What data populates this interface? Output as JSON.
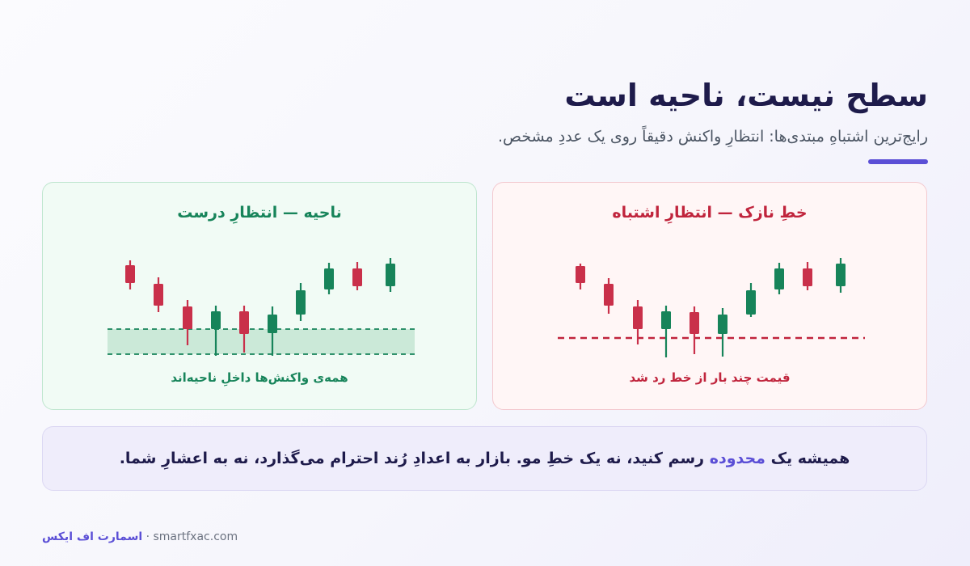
{
  "header": {
    "title": "سطح نیست، ناحیه است",
    "subtitle": "رایج‌ترین اشتباهِ مبتدی‌ها: انتظارِ واکنش دقیقاً روی یک عددِ مشخص."
  },
  "panels": {
    "bad": {
      "title": "خطِ نازک — انتظارِ اشتباه",
      "caption": "قیمت چند بار از خط رد شد"
    },
    "good": {
      "title": "ناحیه — انتظارِ درست",
      "caption": "همه‌ی واکنش‌ها داخلِ ناحیه‌اند"
    }
  },
  "tip": {
    "before": "همیشه یک",
    "highlight": "محدوده",
    "after": "رسم کنید، نه یک خطِ مو. بازار به اعدادِ رُند احترام می‌گذارد، نه به اعشارِ شما."
  },
  "footer": {
    "brand": "اسمارت اف ایکس",
    "separator": "·",
    "site": "smartfxac.com"
  },
  "colors": {
    "bullish": "#17845a",
    "bearish": "#c9304a",
    "accent": "#5b4fd6"
  }
}
